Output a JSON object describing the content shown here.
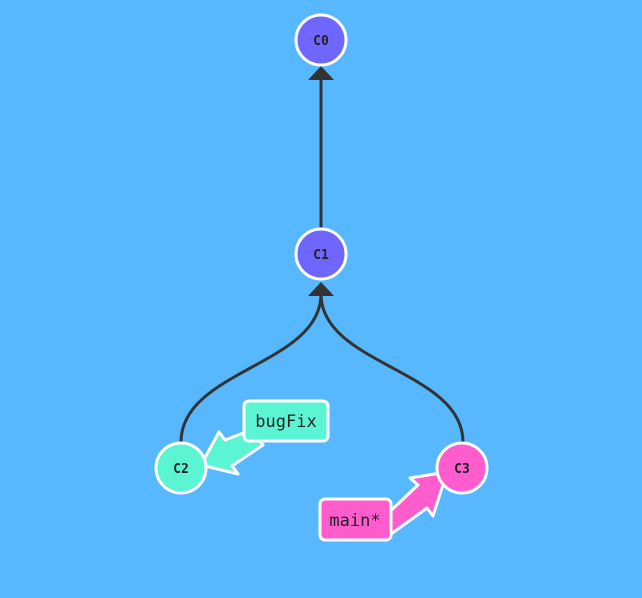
{
  "colors": {
    "background": "#58b8ff",
    "edge": "#333333",
    "node_stroke": "#ffffff",
    "commit_main": "#6f66ff",
    "bugfix": "#5cf5d4",
    "main": "#ff5ccd"
  },
  "commits": [
    {
      "id": "C0",
      "label": "C0",
      "color": "commit_main"
    },
    {
      "id": "C1",
      "label": "C1",
      "color": "commit_main"
    },
    {
      "id": "C2",
      "label": "C2",
      "color": "bugfix"
    },
    {
      "id": "C3",
      "label": "C3",
      "color": "main"
    }
  ],
  "edges": [
    {
      "from": "C1",
      "to": "C0"
    },
    {
      "from": "C2",
      "to": "C1"
    },
    {
      "from": "C3",
      "to": "C1"
    }
  ],
  "branches": [
    {
      "name": "bugFix",
      "target": "C2",
      "color": "bugfix"
    },
    {
      "name": "main*",
      "target": "C3",
      "color": "main"
    }
  ]
}
